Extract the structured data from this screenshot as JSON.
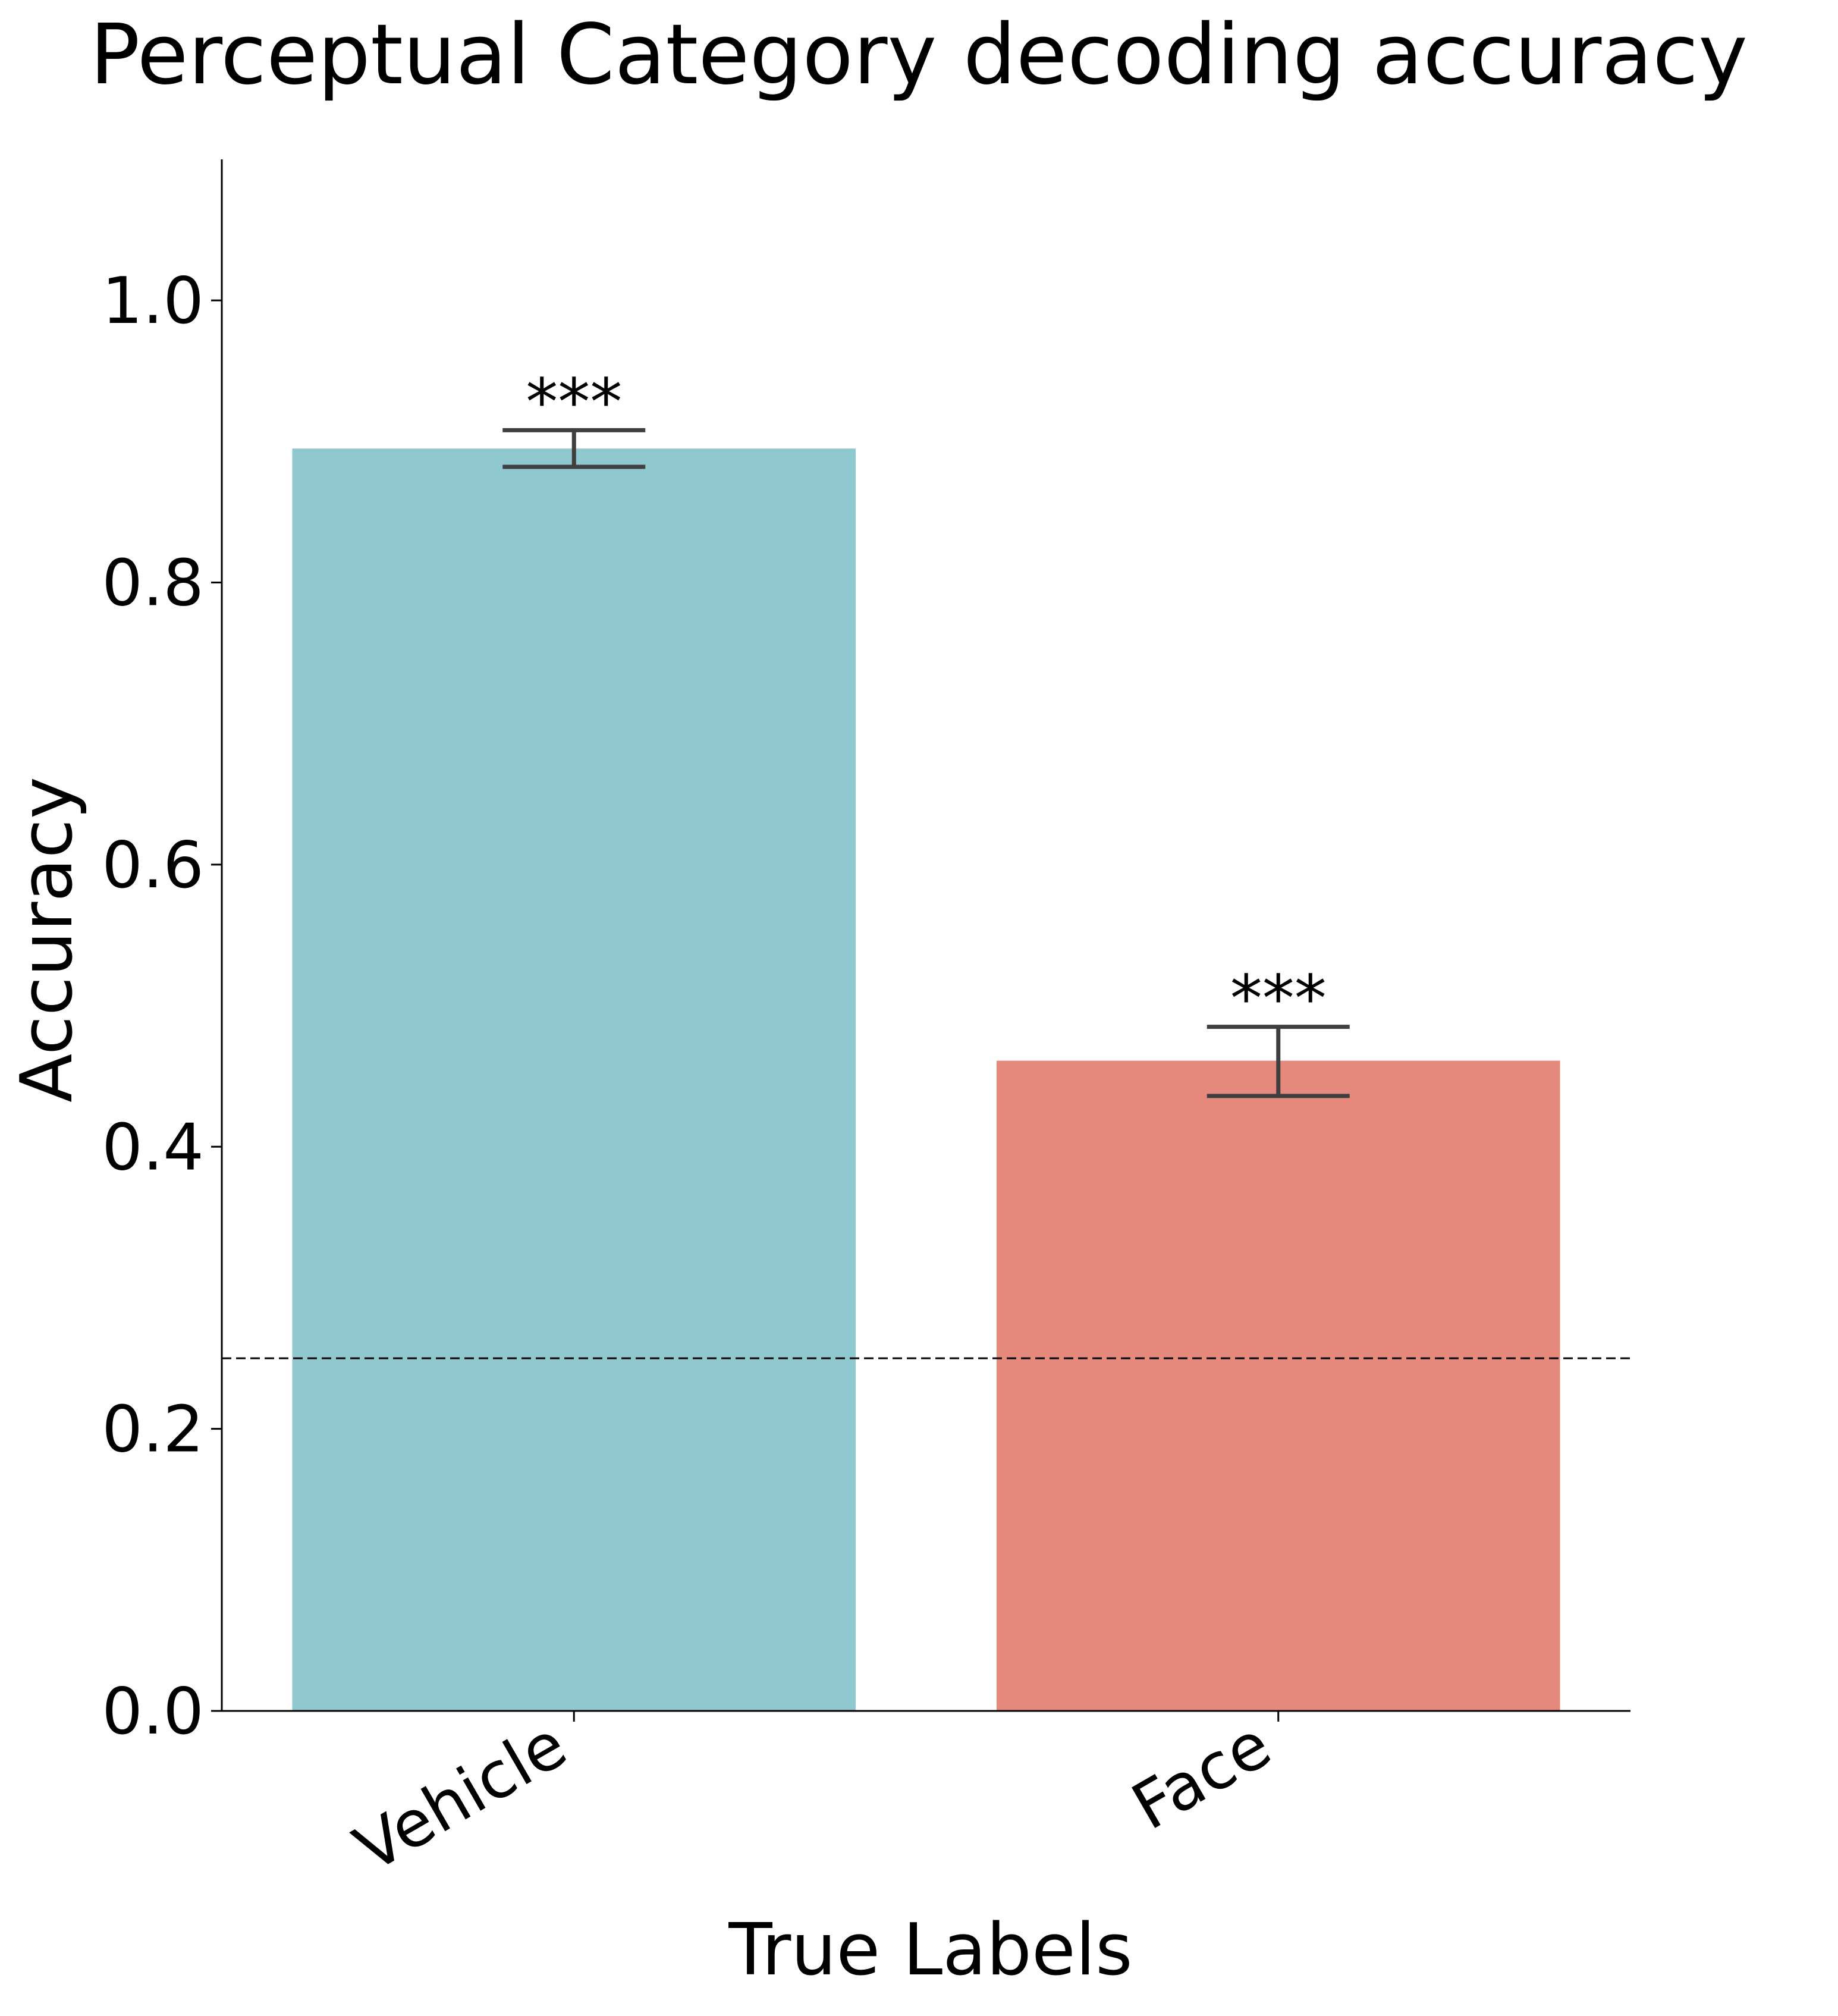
{
  "chart_data": {
    "type": "bar",
    "title": "Perceptual Category decoding accuracy",
    "xlabel": "True Labels",
    "ylabel": "Accuracy",
    "categories": [
      "Vehicle",
      "Face"
    ],
    "values": [
      0.895,
      0.461
    ],
    "error_low": [
      0.882,
      0.436
    ],
    "error_high": [
      0.908,
      0.485
    ],
    "significance": [
      "***",
      "***"
    ],
    "bar_colors": [
      "#90c8d0",
      "#e5897d"
    ],
    "error_color": "#3f3f3f",
    "ylim": [
      0,
      1.1
    ],
    "yticks": [
      0.0,
      0.2,
      0.4,
      0.6,
      0.8,
      1.0
    ],
    "ytick_labels": [
      "0.0",
      "0.2",
      "0.4",
      "0.6",
      "0.8",
      "1.0"
    ],
    "chance_level": 0.25,
    "chance_line_style": "dashed",
    "grid": false,
    "spines": [
      "left",
      "bottom"
    ]
  }
}
